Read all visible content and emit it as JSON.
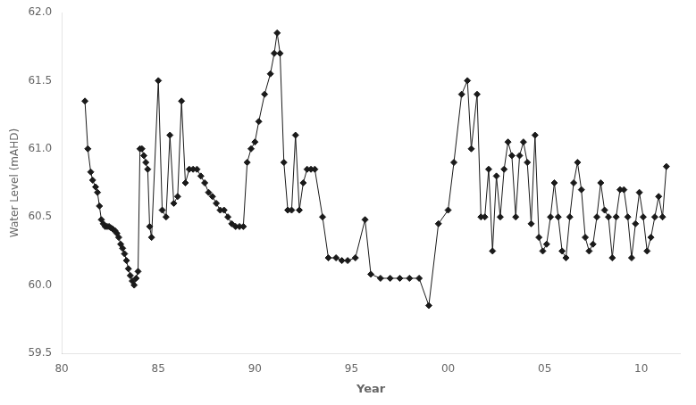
{
  "chart_data": {
    "type": "line",
    "xlabel": "Year",
    "ylabel": "Water Level (mAHD)",
    "x": [
      81.2,
      81.35,
      81.5,
      81.6,
      81.75,
      81.85,
      81.95,
      82.05,
      82.15,
      82.25,
      82.35,
      82.45,
      82.55,
      82.65,
      82.75,
      82.85,
      82.95,
      83.05,
      83.15,
      83.25,
      83.35,
      83.45,
      83.55,
      83.65,
      83.75,
      83.85,
      83.95,
      84.05,
      84.15,
      84.25,
      84.35,
      84.45,
      84.55,
      84.65,
      85.0,
      85.2,
      85.4,
      85.6,
      85.8,
      86.0,
      86.2,
      86.4,
      86.6,
      86.8,
      87.0,
      87.2,
      87.4,
      87.6,
      87.8,
      88.0,
      88.2,
      88.4,
      88.6,
      88.8,
      89.0,
      89.2,
      89.4,
      89.6,
      89.8,
      90.0,
      90.2,
      90.5,
      90.8,
      91.0,
      91.15,
      91.3,
      91.5,
      91.7,
      91.9,
      92.1,
      92.3,
      92.5,
      92.7,
      92.9,
      93.1,
      93.5,
      93.8,
      94.2,
      94.5,
      94.8,
      95.2,
      95.7,
      96.0,
      96.5,
      97.0,
      97.5,
      98.0,
      98.5,
      99.0,
      99.5,
      100.0,
      100.3,
      100.7,
      101.0,
      101.2,
      101.5,
      101.7,
      101.9,
      102.1,
      102.3,
      102.5,
      102.7,
      102.9,
      103.1,
      103.3,
      103.5,
      103.7,
      103.9,
      104.1,
      104.3,
      104.5,
      104.7,
      104.9,
      105.1,
      105.3,
      105.5,
      105.7,
      105.9,
      106.1,
      106.3,
      106.5,
      106.7,
      106.9,
      107.1,
      107.3,
      107.5,
      107.7,
      107.9,
      108.1,
      108.3,
      108.5,
      108.7,
      108.9,
      109.1,
      109.3,
      109.5,
      109.7,
      109.9,
      110.1,
      110.3,
      110.5,
      110.7,
      110.9,
      111.1,
      111.3
    ],
    "values": [
      61.35,
      61.0,
      60.83,
      60.77,
      60.72,
      60.68,
      60.58,
      60.48,
      60.45,
      60.43,
      60.43,
      60.43,
      60.42,
      60.41,
      60.4,
      60.38,
      60.35,
      60.3,
      60.27,
      60.23,
      60.18,
      60.12,
      60.07,
      60.03,
      60.0,
      60.05,
      60.1,
      61.0,
      61.0,
      60.95,
      60.9,
      60.85,
      60.43,
      60.35,
      61.5,
      60.55,
      60.5,
      61.1,
      60.6,
      60.65,
      61.35,
      60.75,
      60.85,
      60.85,
      60.85,
      60.8,
      60.75,
      60.68,
      60.65,
      60.6,
      60.55,
      60.55,
      60.5,
      60.45,
      60.43,
      60.43,
      60.43,
      60.9,
      61.0,
      61.05,
      61.2,
      61.4,
      61.55,
      61.7,
      61.85,
      61.7,
      60.9,
      60.55,
      60.55,
      61.1,
      60.55,
      60.75,
      60.85,
      60.85,
      60.85,
      60.5,
      60.2,
      60.2,
      60.18,
      60.18,
      60.2,
      60.48,
      60.08,
      60.05,
      60.05,
      60.05,
      60.05,
      60.05,
      59.85,
      60.45,
      60.55,
      60.9,
      61.4,
      61.5,
      61.0,
      61.4,
      60.5,
      60.5,
      60.85,
      60.25,
      60.8,
      60.5,
      60.85,
      61.05,
      60.95,
      60.5,
      60.95,
      61.05,
      60.9,
      60.45,
      61.1,
      60.35,
      60.25,
      60.3,
      60.5,
      60.75,
      60.5,
      60.25,
      60.2,
      60.5,
      60.75,
      60.9,
      60.7,
      60.35,
      60.25,
      60.3,
      60.5,
      60.75,
      60.55,
      60.5,
      60.2,
      60.5,
      60.7,
      60.7,
      60.5,
      60.2,
      60.45,
      60.68,
      60.5,
      60.25,
      60.35,
      60.5,
      60.65,
      60.5,
      60.87
    ],
    "color": "#1a1a1a",
    "marker": "diamond",
    "xlim": [
      80,
      112
    ],
    "ylim": [
      59.5,
      62.0
    ],
    "xticks": [
      80,
      85,
      90,
      95,
      {
        "value": 100,
        "label": "00"
      },
      {
        "value": 105,
        "label": "05"
      },
      {
        "value": 110,
        "label": "10"
      }
    ],
    "yticks": [
      59.5,
      {
        "value": 60.0,
        "label": "60.0"
      },
      60.5,
      {
        "value": 61.0,
        "label": "61.0"
      },
      61.5,
      {
        "value": 62.0,
        "label": "62.0"
      }
    ],
    "grid": false
  }
}
